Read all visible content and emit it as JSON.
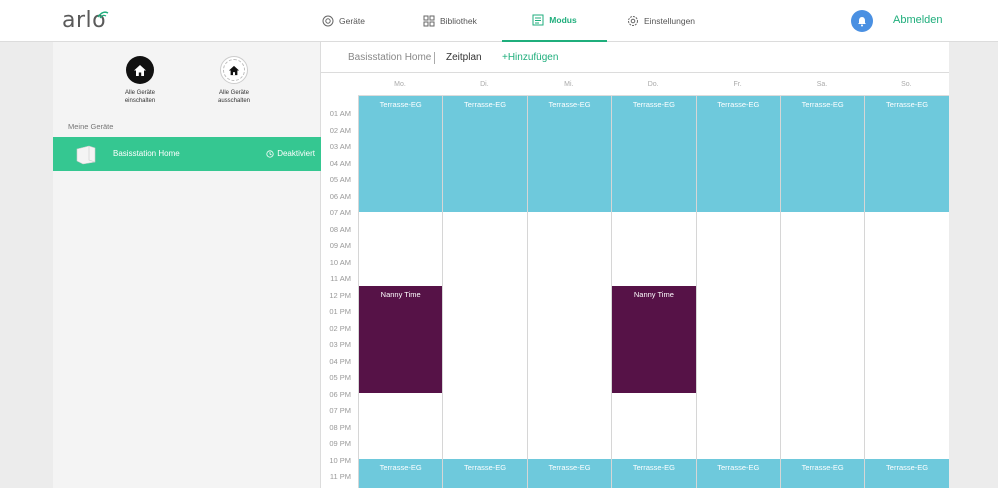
{
  "app": {
    "logo_text": "arlo"
  },
  "nav": {
    "items": [
      {
        "label": "Geräte",
        "icon": "camera-icon"
      },
      {
        "label": "Bibliothek",
        "icon": "grid-icon"
      },
      {
        "label": "Modus",
        "icon": "mode-icon",
        "active": true
      },
      {
        "label": "Einstellungen",
        "icon": "gear-icon"
      }
    ],
    "logout": "Abmelden"
  },
  "sidebar": {
    "modes": [
      {
        "label1": "Alle Geräte",
        "label2": "einschalten"
      },
      {
        "label1": "Alle Geräte",
        "label2": "ausschalten"
      }
    ],
    "devices_title": "Meine Geräte",
    "device": {
      "name": "Basisstation Home",
      "status": "Deaktiviert"
    }
  },
  "tabs": {
    "base": "Basisstation Home",
    "schedule": "Zeitplan",
    "add": "+Hinzufügen"
  },
  "days": [
    "Mo.",
    "Di.",
    "Mi.",
    "Do.",
    "Fr.",
    "Sa.",
    "So."
  ],
  "hours": [
    "01 AM",
    "02 AM",
    "03 AM",
    "04 AM",
    "05 AM",
    "06 AM",
    "07 AM",
    "08 AM",
    "09 AM",
    "10 AM",
    "11 AM",
    "12 PM",
    "01 PM",
    "02 PM",
    "03 PM",
    "04 PM",
    "05 PM",
    "06 PM",
    "07 PM",
    "08 PM",
    "09 PM",
    "10 PM",
    "11 PM"
  ],
  "schedule": {
    "morning": "Terrasse-EG",
    "evening": "Terrasse-EG",
    "nanny": "Nanny Time",
    "nanny_days": [
      0,
      3
    ]
  },
  "colors": {
    "accent": "#1fae7c",
    "blue_block": "#6ec9dc",
    "purple_block": "#561247",
    "device_row": "#35c791"
  }
}
